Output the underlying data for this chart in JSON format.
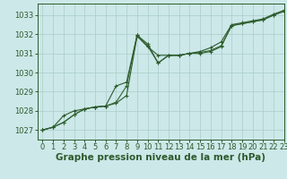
{
  "background_color": "#cce8e8",
  "grid_color": "#aacccc",
  "line_color_dark": "#2d5a2d",
  "line_color_mid": "#336633",
  "xlabel": "Graphe pression niveau de la mer (hPa)",
  "xlabel_fontsize": 7.5,
  "tick_fontsize": 6,
  "xlim": [
    -0.5,
    23
  ],
  "ylim": [
    1026.5,
    1033.6
  ],
  "yticks": [
    1027,
    1028,
    1029,
    1030,
    1031,
    1032,
    1033
  ],
  "xticks": [
    0,
    1,
    2,
    3,
    4,
    5,
    6,
    7,
    8,
    9,
    10,
    11,
    12,
    13,
    14,
    15,
    16,
    17,
    18,
    19,
    20,
    21,
    22,
    23
  ],
  "series1_x": [
    0,
    1,
    2,
    3,
    4,
    5,
    6,
    7,
    8,
    9,
    10,
    11,
    12,
    13,
    14,
    15,
    16,
    17,
    18,
    19,
    20,
    21,
    22,
    23
  ],
  "series1_y": [
    1027.0,
    1027.15,
    1027.4,
    1027.8,
    1028.1,
    1028.2,
    1028.25,
    1028.4,
    1028.8,
    1031.9,
    1031.35,
    1030.9,
    1030.9,
    1030.9,
    1031.0,
    1031.0,
    1031.1,
    1031.35,
    1032.45,
    1032.55,
    1032.65,
    1032.75,
    1033.0,
    1033.2
  ],
  "series2_x": [
    0,
    1,
    2,
    3,
    4,
    5,
    6,
    7,
    8,
    9,
    10,
    11,
    12,
    13,
    14,
    15,
    16,
    17,
    18,
    19,
    20,
    21,
    22,
    23
  ],
  "series2_y": [
    1027.0,
    1027.15,
    1027.4,
    1027.8,
    1028.1,
    1028.2,
    1028.25,
    1028.45,
    1029.3,
    1031.95,
    1031.5,
    1030.5,
    1030.9,
    1030.9,
    1031.0,
    1031.05,
    1031.15,
    1031.4,
    1032.45,
    1032.55,
    1032.65,
    1032.75,
    1033.0,
    1033.2
  ],
  "series3_x": [
    0,
    1,
    2,
    3,
    4,
    5,
    6,
    7,
    8,
    9,
    10,
    11,
    12,
    13,
    14,
    15,
    16,
    17,
    18,
    19,
    20,
    21,
    22,
    23
  ],
  "series3_y": [
    1027.0,
    1027.15,
    1027.75,
    1028.0,
    1028.1,
    1028.2,
    1028.25,
    1029.3,
    1029.5,
    1031.95,
    1031.4,
    1030.5,
    1030.9,
    1030.9,
    1031.0,
    1031.1,
    1031.3,
    1031.6,
    1032.5,
    1032.6,
    1032.7,
    1032.8,
    1033.05,
    1033.25
  ]
}
